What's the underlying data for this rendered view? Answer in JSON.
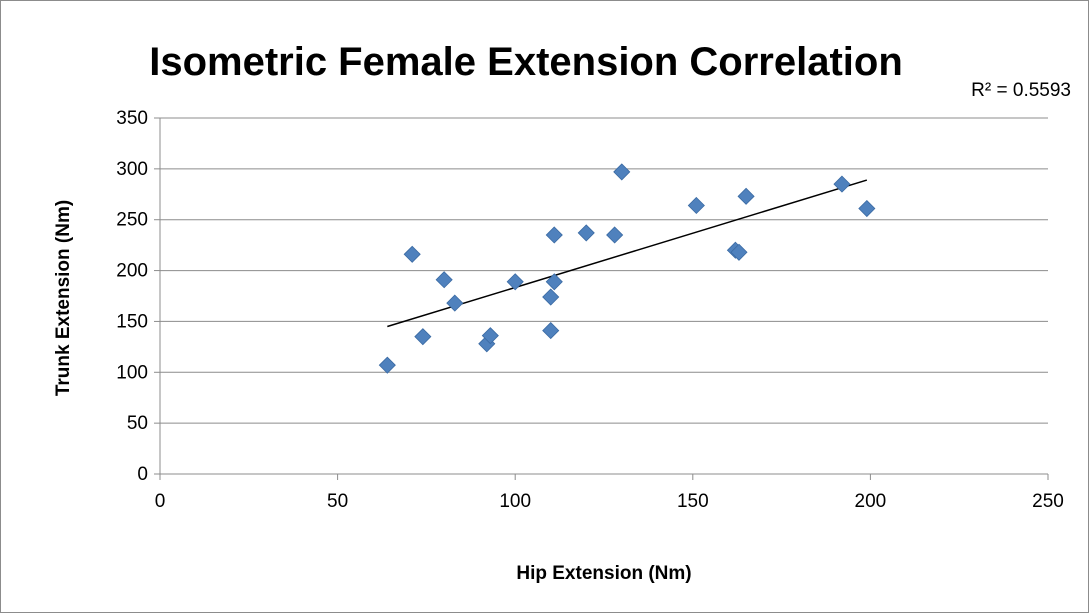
{
  "chart_data": {
    "type": "scatter",
    "title": "Isometric Female Extension Correlation",
    "xlabel": "Hip Extension (Nm)",
    "ylabel": "Trunk Extension (Nm)",
    "xlim": [
      0,
      250
    ],
    "ylim": [
      0,
      350
    ],
    "xticks": [
      0,
      50,
      100,
      150,
      200,
      250
    ],
    "yticks": [
      0,
      50,
      100,
      150,
      200,
      250,
      300,
      350
    ],
    "grid": "horizontal",
    "legend": "none",
    "marker": "diamond",
    "marker_color": "#4f81bd",
    "series": [
      {
        "x": [
          64,
          71,
          74,
          80,
          83,
          92,
          93,
          100,
          110,
          110,
          111,
          111,
          120,
          128,
          130,
          151,
          162,
          163,
          165,
          192,
          199
        ],
        "y": [
          107,
          216,
          135,
          191,
          168,
          128,
          136,
          189,
          141,
          174,
          189,
          235,
          237,
          235,
          297,
          264,
          220,
          218,
          273,
          285,
          261
        ]
      }
    ],
    "trendline": {
      "type": "linear",
      "x_range": [
        64,
        199
      ],
      "y_range": [
        145,
        289
      ],
      "r2_label": "R² = 0.5593"
    }
  }
}
